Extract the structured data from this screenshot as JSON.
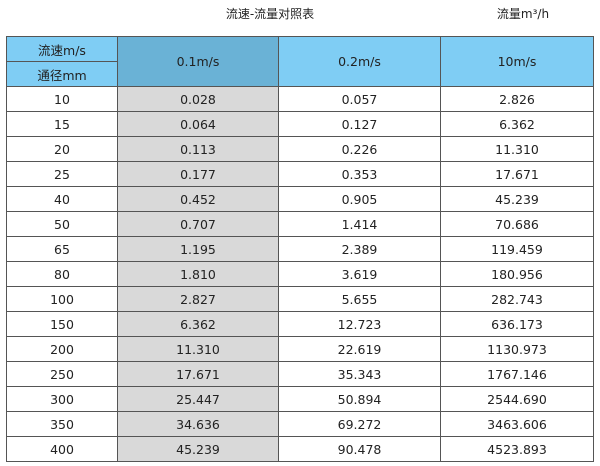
{
  "title": "流速-流量对照表",
  "unit": "流量m³/h",
  "header": {
    "corner_top": "流速m/s",
    "corner_bottom": "通径mm",
    "columns": [
      "0.1m/s",
      "0.2m/s",
      "10m/s"
    ]
  },
  "colors": {
    "header": "#7fcdf4",
    "highlight_header": "#6ab2d6",
    "highlight_column": "#d9d9d9"
  },
  "rows": [
    [
      "10",
      "0.028",
      "0.057",
      "2.826"
    ],
    [
      "15",
      "0.064",
      "0.127",
      "6.362"
    ],
    [
      "20",
      "0.113",
      "0.226",
      "11.310"
    ],
    [
      "25",
      "0.177",
      "0.353",
      "17.671"
    ],
    [
      "40",
      "0.452",
      "0.905",
      "45.239"
    ],
    [
      "50",
      "0.707",
      "1.414",
      "70.686"
    ],
    [
      "65",
      "1.195",
      "2.389",
      "119.459"
    ],
    [
      "80",
      "1.810",
      "3.619",
      "180.956"
    ],
    [
      "100",
      "2.827",
      "5.655",
      "282.743"
    ],
    [
      "150",
      "6.362",
      "12.723",
      "636.173"
    ],
    [
      "200",
      "11.310",
      "22.619",
      "1130.973"
    ],
    [
      "250",
      "17.671",
      "35.343",
      "1767.146"
    ],
    [
      "300",
      "25.447",
      "50.894",
      "2544.690"
    ],
    [
      "350",
      "34.636",
      "69.272",
      "3463.606"
    ],
    [
      "400",
      "45.239",
      "90.478",
      "4523.893"
    ]
  ]
}
